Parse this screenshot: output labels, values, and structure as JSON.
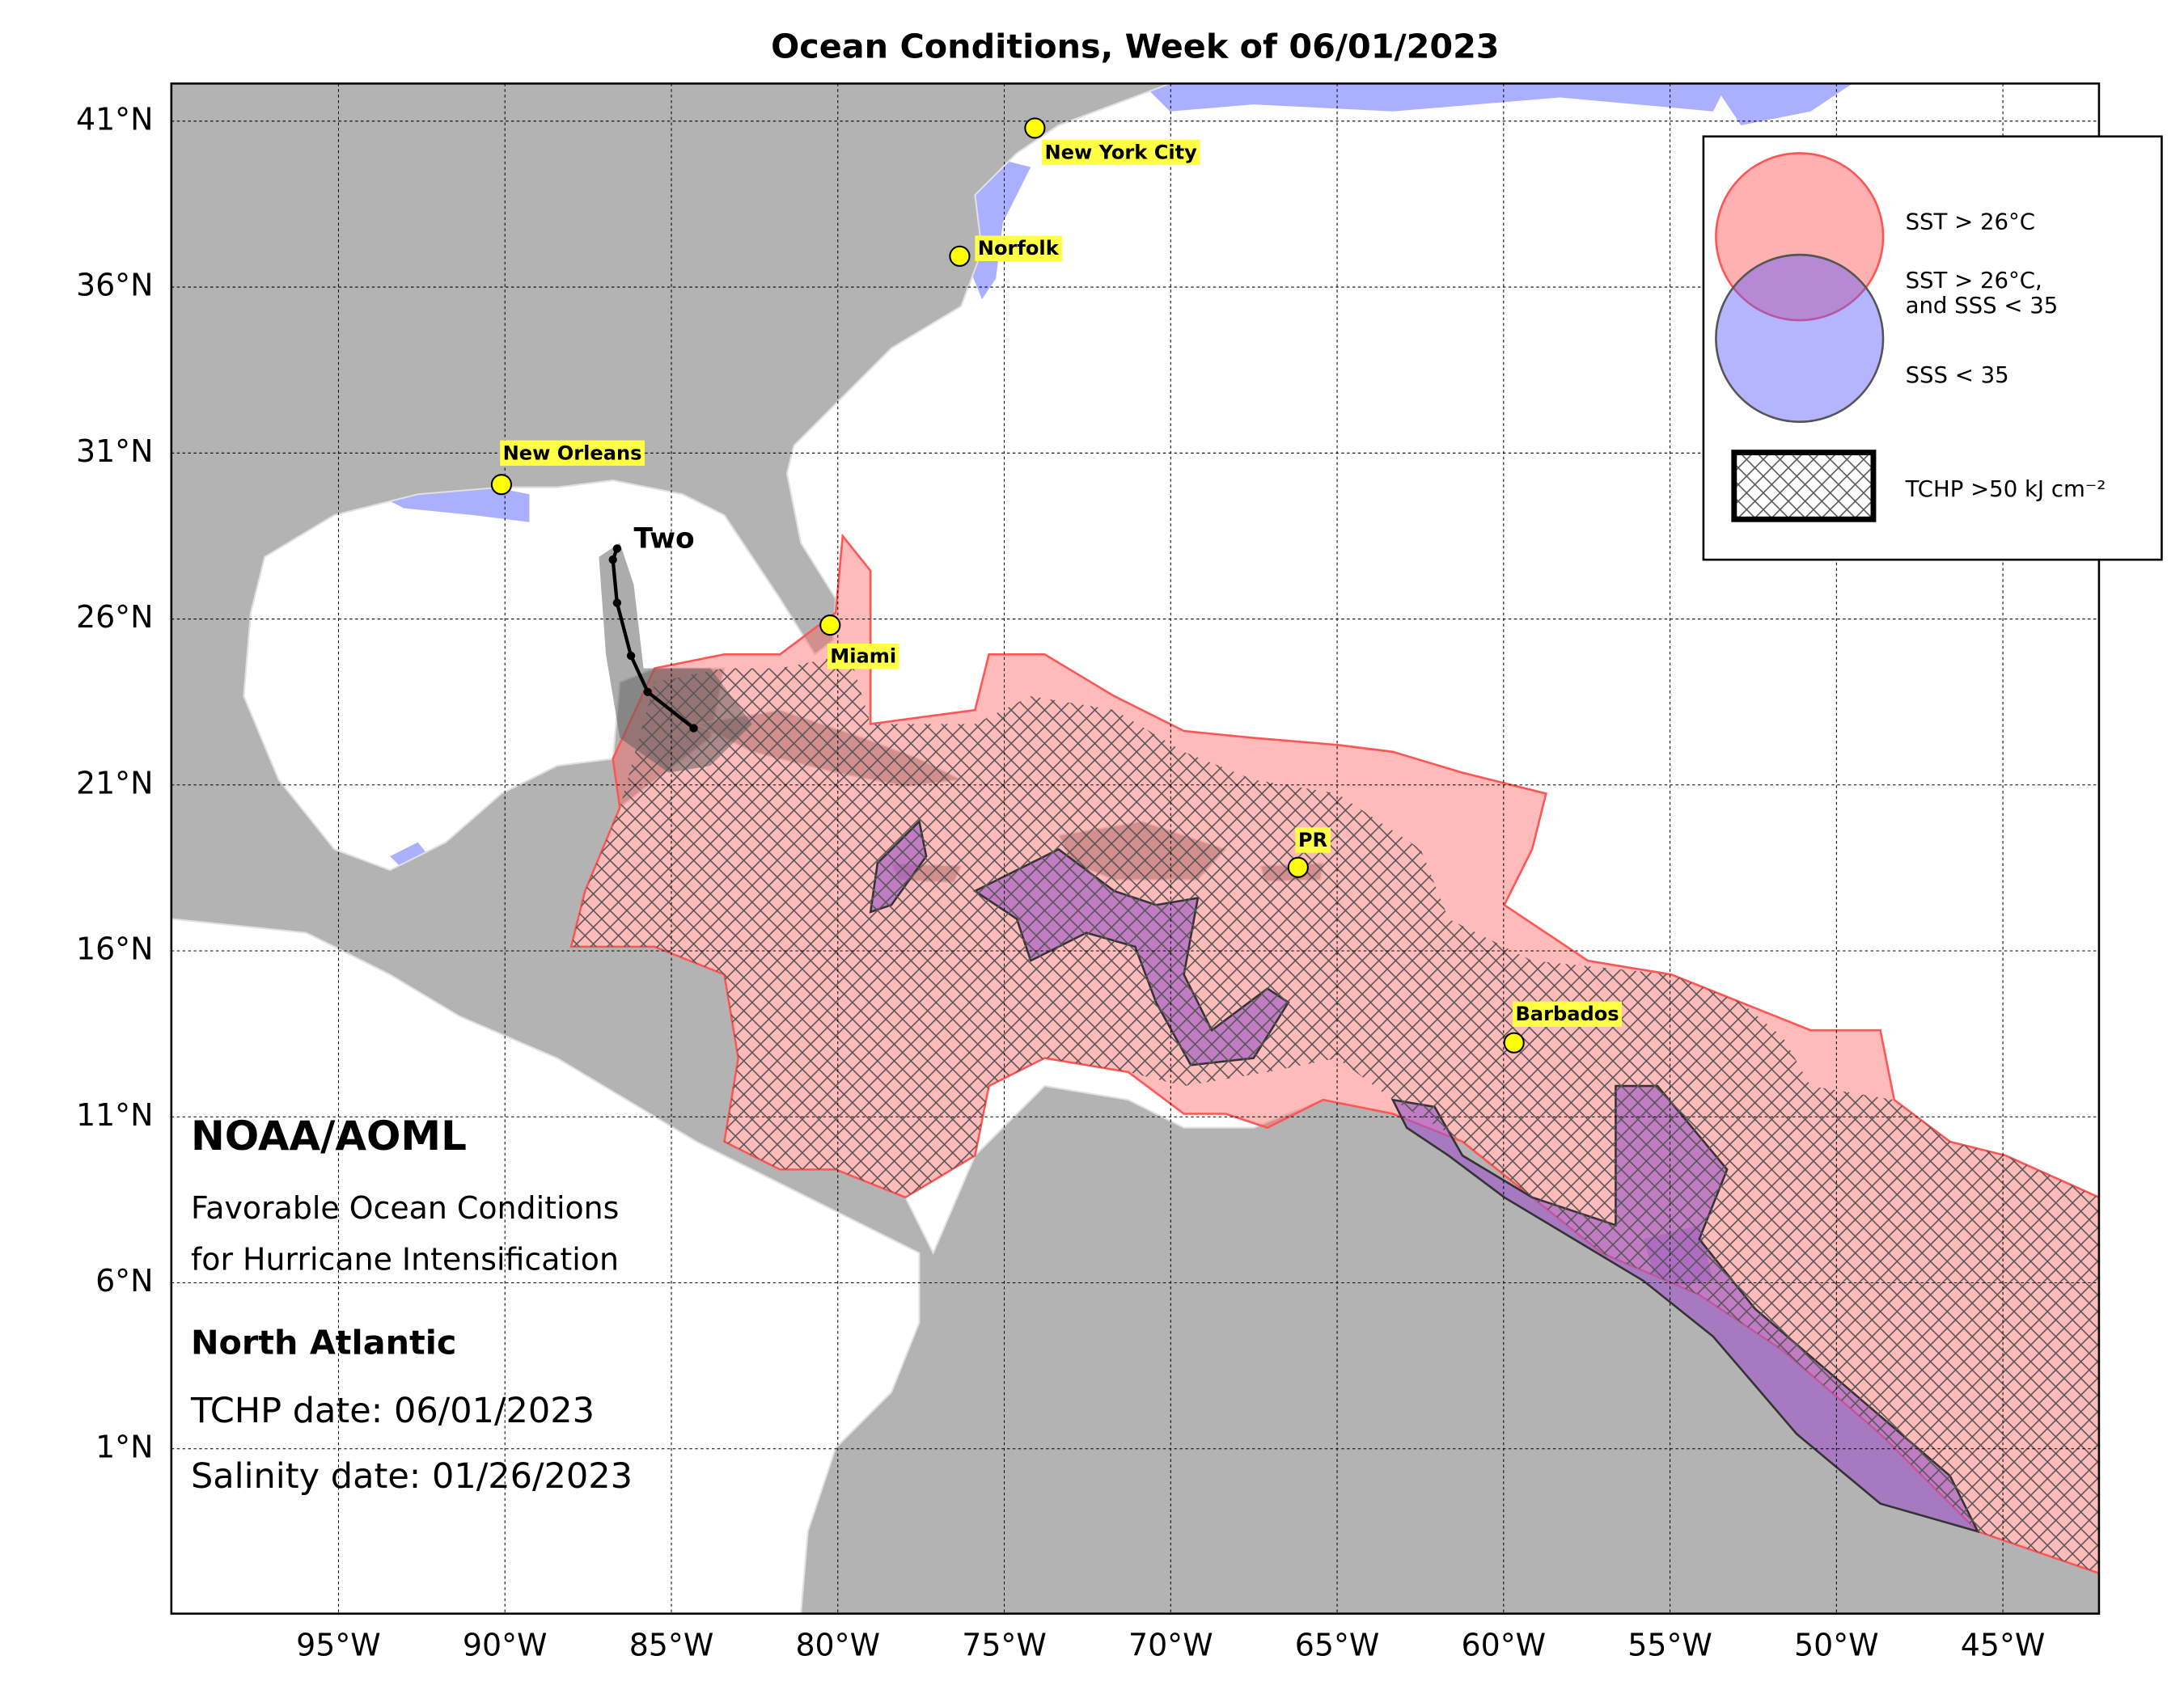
{
  "title": "Ocean Conditions, Week of 06/01/2023",
  "axes": {
    "lat_labels": [
      "41°N",
      "36°N",
      "31°N",
      "26°N",
      "21°N",
      "16°N",
      "11°N",
      "6°N",
      "1°N"
    ],
    "lon_labels": [
      "95°W",
      "90°W",
      "85°W",
      "80°W",
      "75°W",
      "70°W",
      "65°W",
      "60°W",
      "55°W",
      "50°W",
      "45°W"
    ]
  },
  "cities": [
    "New York City",
    "Norfolk",
    "New Orleans",
    "Miami",
    "PR",
    "Barbados"
  ],
  "storm": {
    "label": "Two"
  },
  "info": {
    "agency": "NOAA/AOML",
    "description": [
      "Favorable Ocean Conditions",
      "for Hurricane Intensification"
    ],
    "basin": "North Atlantic",
    "tchp_date": "TCHP date: 06/01/2023",
    "salinity_date": "Salinity date: 01/26/2023"
  },
  "legend": {
    "entries": [
      [
        "SST > 26°C"
      ],
      [
        "SST > 26°C,",
        "and SSS < 35"
      ],
      [
        "SSS < 35"
      ],
      [
        "TCHP >50 kJ cm⁻²"
      ]
    ]
  }
}
